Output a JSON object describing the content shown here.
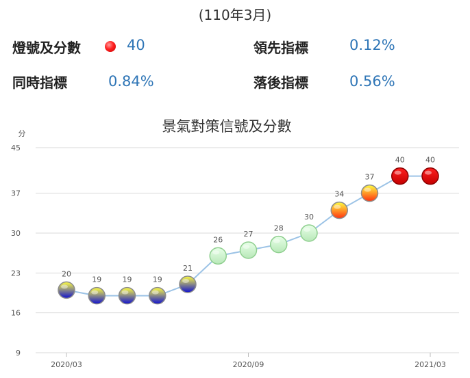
{
  "header": {
    "period": "(110年3月)"
  },
  "stats": {
    "signal_label": "燈號及分數",
    "signal_value": "40",
    "signal_color": "#ff2020",
    "leading_label": "領先指標",
    "leading_value": "0.12%",
    "coincident_label": "同時指標",
    "coincident_value": "0.84%",
    "lagging_label": "落後指標",
    "lagging_value": "0.56%"
  },
  "chart_data": {
    "type": "line",
    "title": "景氣對策信號及分數",
    "ylabel": "分",
    "ylim": [
      9,
      45
    ],
    "yticks": [
      9,
      16,
      23,
      30,
      37,
      45
    ],
    "xtick_labels": [
      "2020/03",
      "2020/09",
      "2021/03"
    ],
    "grid": true,
    "categories": [
      "2020/03",
      "2020/04",
      "2020/05",
      "2020/06",
      "2020/07",
      "2020/08",
      "2020/09",
      "2020/10",
      "2020/11",
      "2020/12",
      "2021/01",
      "2021/02",
      "2021/03"
    ],
    "series": [
      {
        "values": [
          20,
          19,
          19,
          19,
          21,
          26,
          27,
          28,
          30,
          34,
          37,
          40,
          40
        ],
        "signals": [
          "blue",
          "blue",
          "blue",
          "blue",
          "blue",
          "green",
          "green",
          "green",
          "green",
          "yellow-red",
          "yellow-red",
          "red",
          "red"
        ]
      }
    ],
    "line_color": "#9cc3e6",
    "signal_colors": {
      "blue": [
        "#ffff40",
        "#1010d0"
      ],
      "green": [
        "#e8ffe8",
        "#b8e8b8"
      ],
      "yellow-red": [
        "#ffff40",
        "#ff3010"
      ],
      "red": [
        "#ff2020",
        "#c40000"
      ]
    }
  }
}
